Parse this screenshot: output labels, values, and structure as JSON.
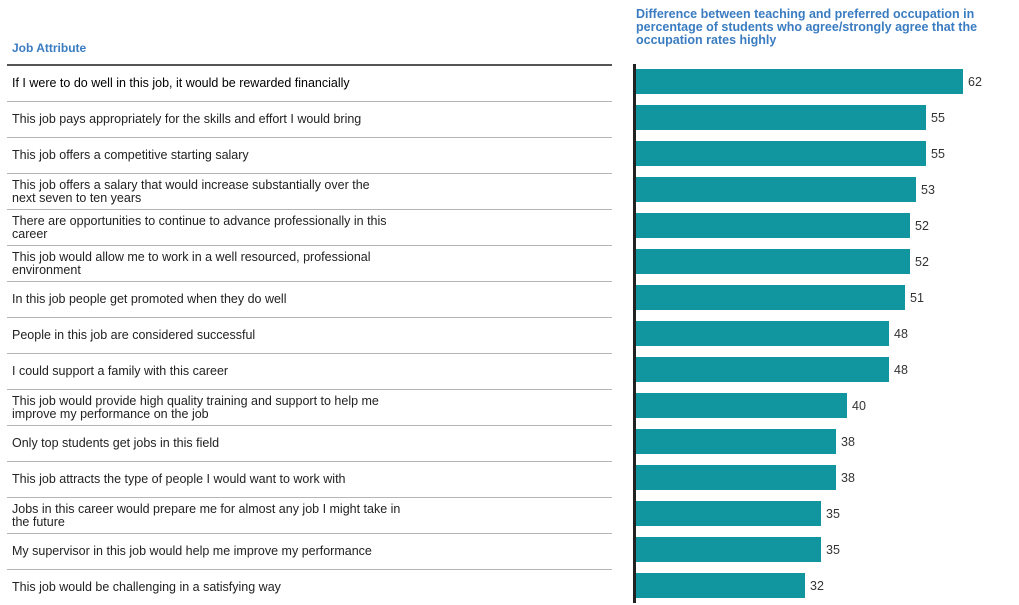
{
  "headers": {
    "left": "Job Attribute",
    "right": "Difference between teaching and preferred occupation in percentage of students who agree/strongly agree that the occupation rates highly"
  },
  "colors": {
    "bar": "#11969f",
    "header": "#3a7cc1"
  },
  "chart_data": {
    "type": "bar",
    "orientation": "horizontal",
    "categories": [
      "If I were to do well in this job, it would be rewarded financially",
      "This job pays appropriately for the skills and effort I would bring",
      "This job offers a competitive starting salary",
      "This job offers a salary that would increase substantially over the next seven to ten years",
      "There are opportunities to continue to advance professionally in this career",
      "This job would allow me to work in a well resourced, professional environment",
      "In this job people get promoted when they do well",
      "People in this job are considered successful",
      "I could support a family with this career",
      "This job would provide high quality training and support to help me improve my performance on the job",
      "Only top students get jobs in this field",
      "This job attracts the type of people I would want to work with",
      "Jobs in this career would prepare me for almost any job I might take in the future",
      "My supervisor in this job would help me improve my performance",
      "This job would be challenging in a satisfying way"
    ],
    "values": [
      62,
      55,
      55,
      53,
      52,
      52,
      51,
      48,
      48,
      40,
      38,
      38,
      35,
      35,
      32
    ],
    "data_labels": true,
    "xlim": [
      0,
      62
    ],
    "grid": false,
    "legend": "none"
  }
}
